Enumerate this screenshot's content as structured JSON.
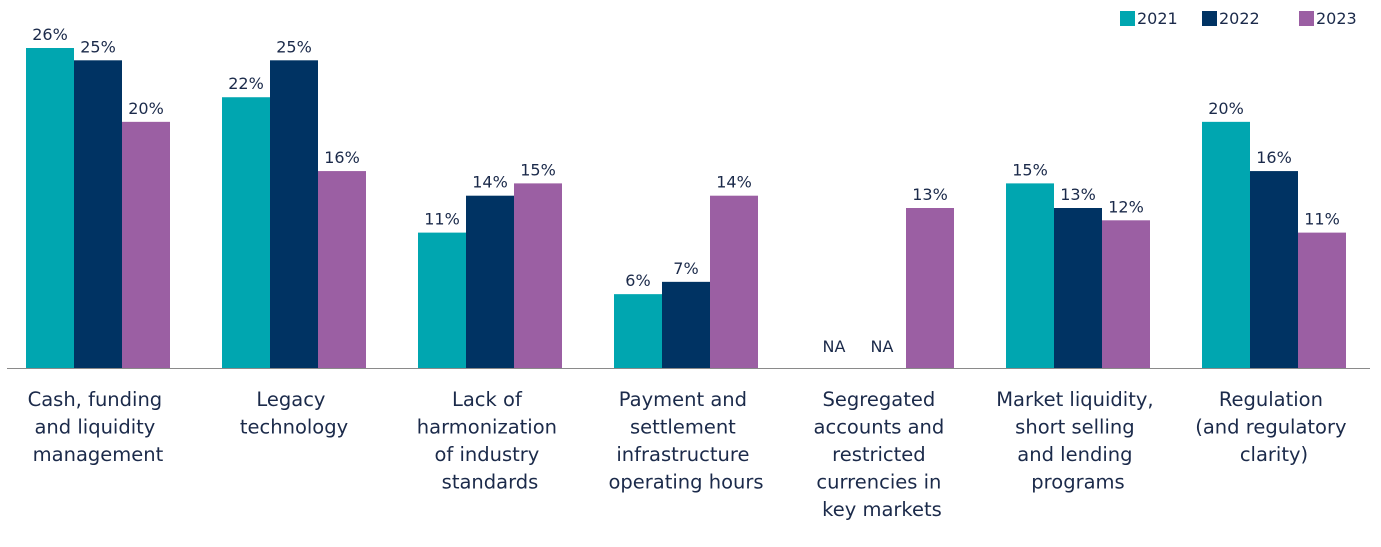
{
  "chart_data": {
    "type": "bar",
    "categories": [
      "Cash, funding and liquidity management",
      "Legacy technology",
      "Lack of harmonization of industry standards",
      "Payment and settlement infrastructure operating hours",
      "Segregated accounts and restricted currencies in key markets",
      "Market liquidity, short selling and lending programs",
      "Regulation (and regulatory clarity)"
    ],
    "series": [
      {
        "name": "2021",
        "color": "#00a6b0",
        "values": [
          26,
          22,
          11,
          6,
          null,
          15,
          20
        ],
        "value_labels": [
          "26%",
          "22%",
          "11%",
          "6%",
          "NA",
          "15%",
          "20%"
        ]
      },
      {
        "name": "2022",
        "color": "#003363",
        "values": [
          25,
          25,
          14,
          7,
          null,
          13,
          16
        ],
        "value_labels": [
          "25%",
          "25%",
          "14%",
          "7%",
          "NA",
          "13%",
          "16%"
        ]
      },
      {
        "name": "2023",
        "color": "#9b5fa3",
        "values": [
          20,
          16,
          15,
          14,
          13,
          12,
          11
        ],
        "value_labels": [
          "20%",
          "16%",
          "15%",
          "14%",
          "13%",
          "12%",
          "11%"
        ]
      }
    ],
    "legend": "top-right"
  }
}
